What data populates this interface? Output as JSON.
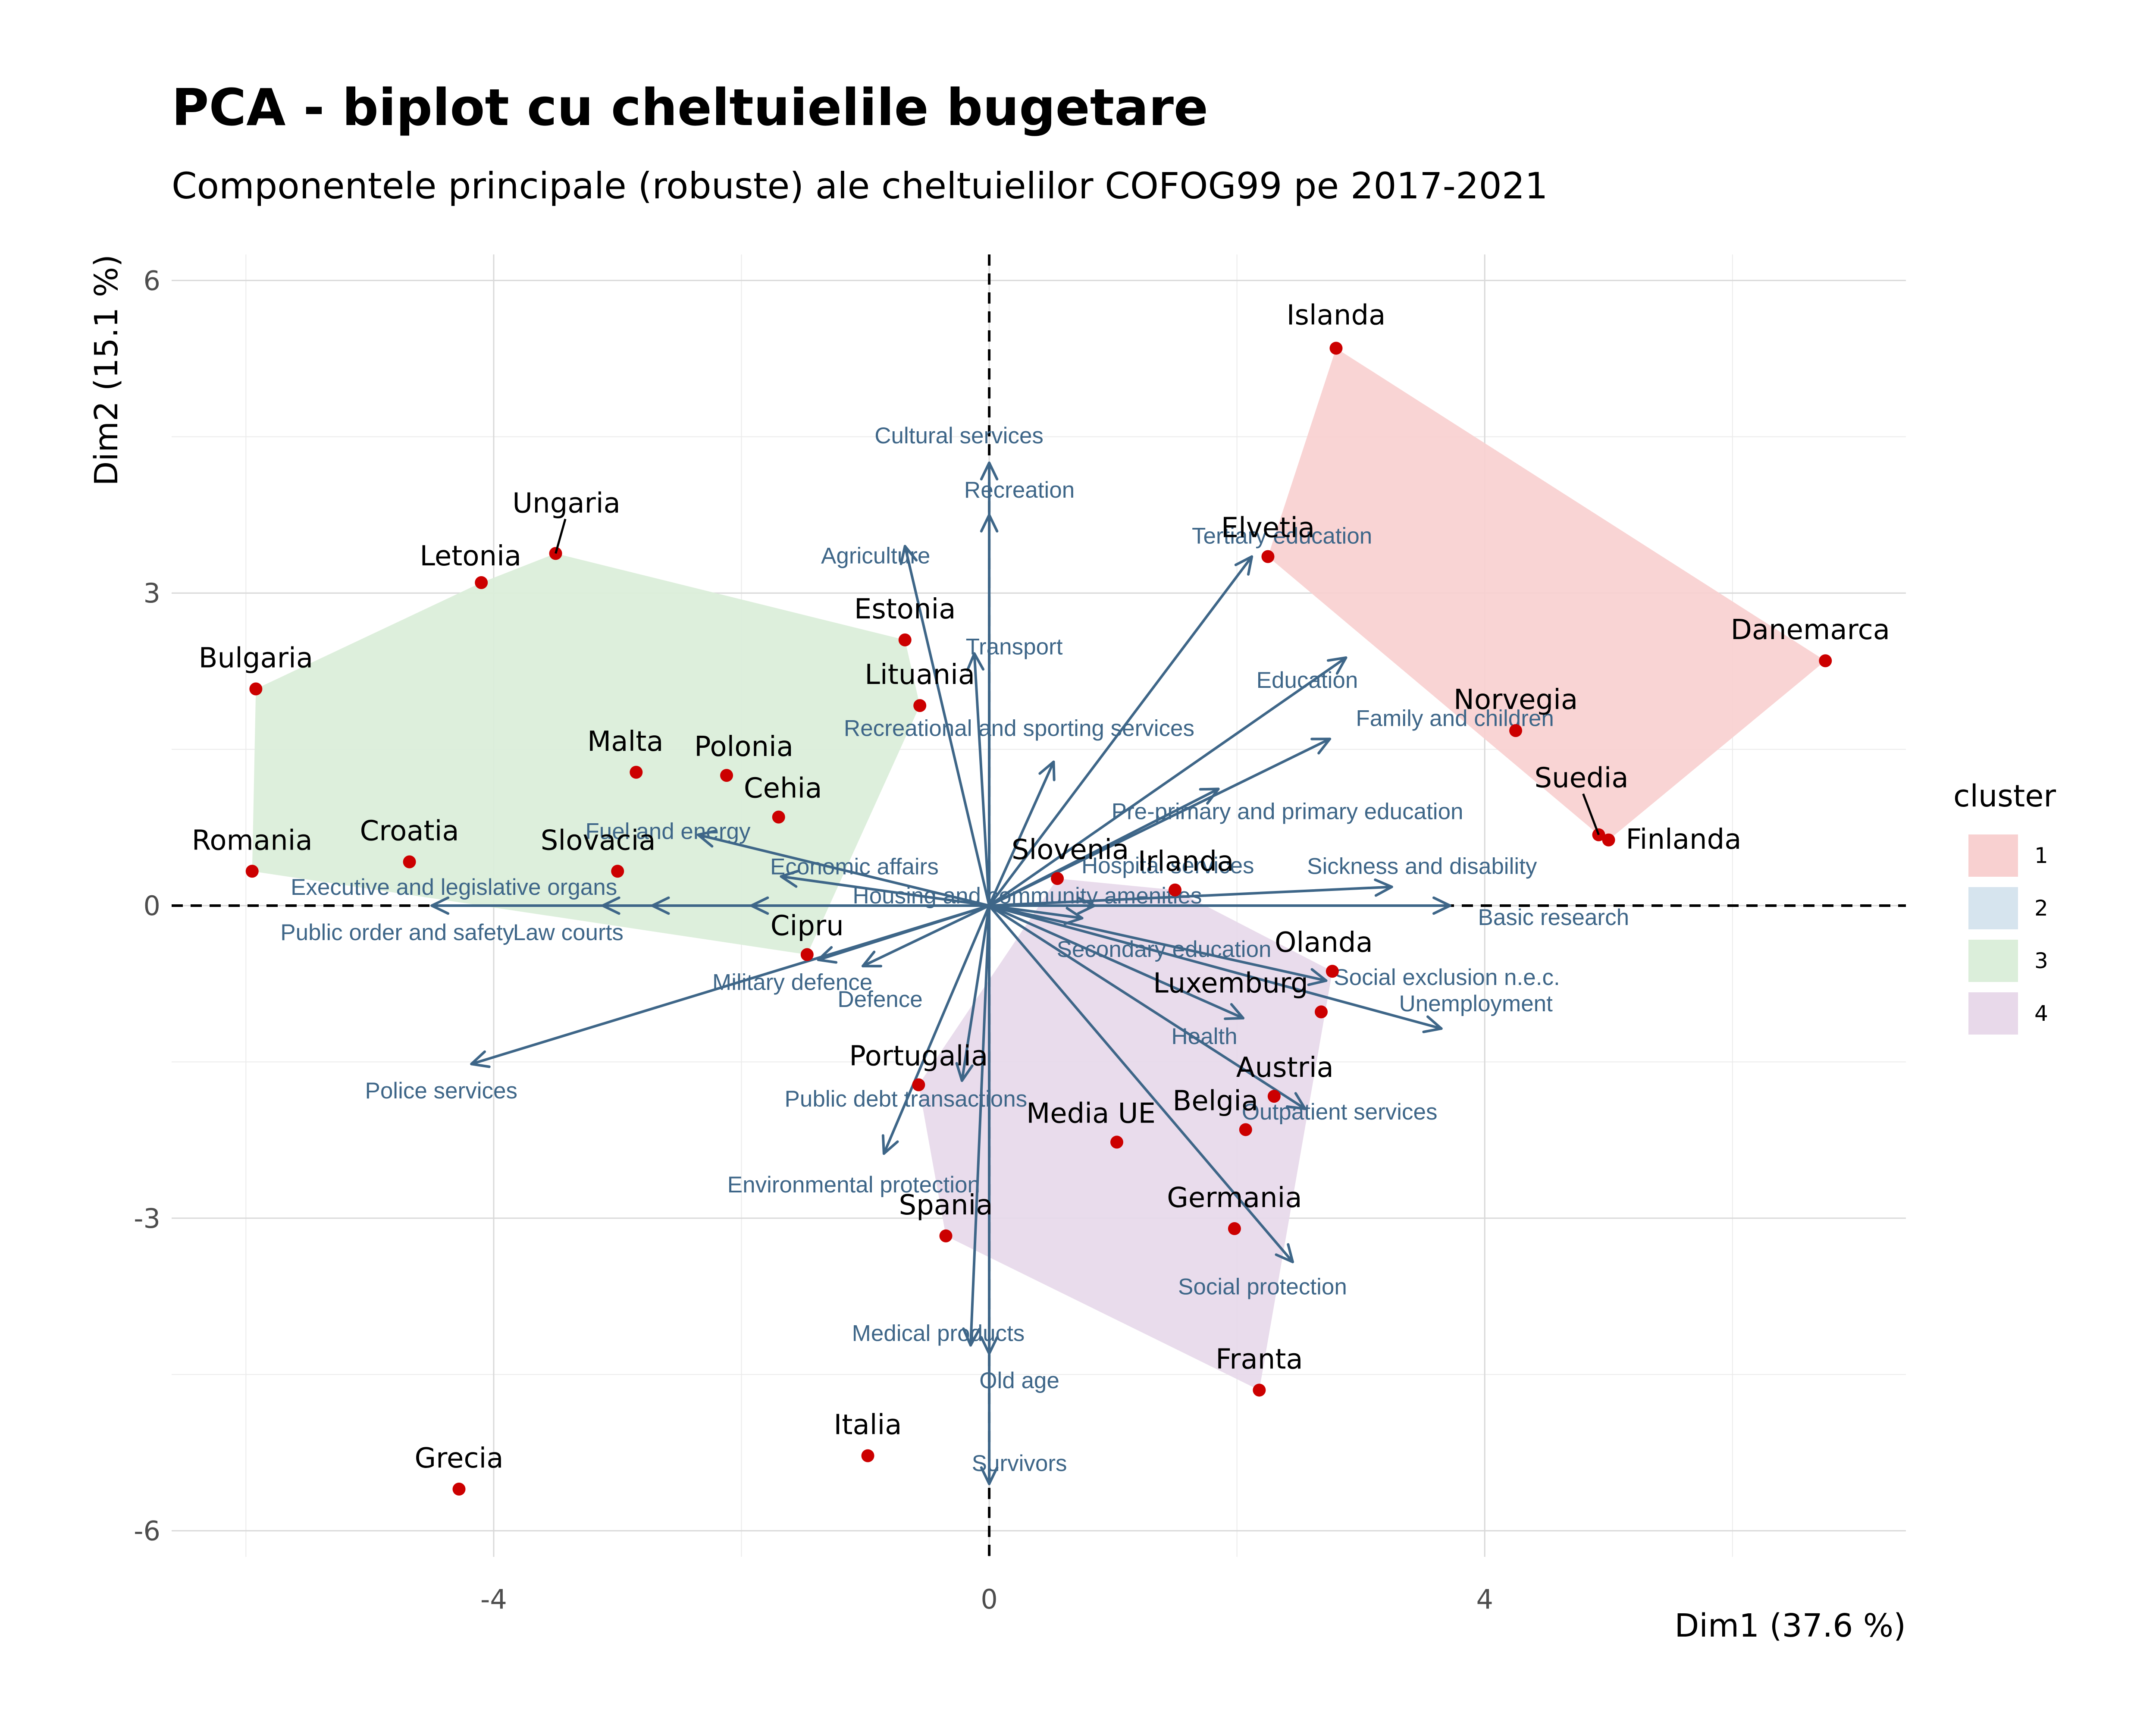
{
  "chart_data": {
    "type": "scatter",
    "title": "PCA - biplot cu cheltuielile bugetare",
    "subtitle": "Componentele principale (robuste) ale cheltuielilor COFOG99 pe 2017-2021",
    "xlabel": "Dim1 (37.6 %)",
    "ylabel": "Dim2 (15.1 %)",
    "xlim": [
      -6.6,
      7.4
    ],
    "ylim": [
      -6.25,
      6.25
    ],
    "x_ticks": [
      -4,
      0,
      4
    ],
    "x_tick_labels": [
      "-4",
      "0",
      "4"
    ],
    "y_ticks": [
      -6,
      -3,
      0,
      3,
      6
    ],
    "y_tick_labels": [
      "-6",
      "-3",
      "0",
      "3",
      "6"
    ],
    "grid": true,
    "reference_lines": {
      "x": 0,
      "y": 0,
      "style": "dashed"
    },
    "legend": {
      "title": "cluster",
      "placement": "right",
      "items": [
        {
          "label": "1",
          "color": "#f8d0d0"
        },
        {
          "label": "2",
          "color": "#d6e4ee"
        },
        {
          "label": "3",
          "color": "#dbeeda"
        },
        {
          "label": "4",
          "color": "#e8d9ea"
        }
      ]
    },
    "point_color": "#cc0000",
    "arrow_color": "#3e6688",
    "countries": [
      {
        "name": "Islanda",
        "x": 2.8,
        "y": 5.35,
        "cluster": 1
      },
      {
        "name": "Elvetia",
        "x": 2.25,
        "y": 3.35,
        "cluster": 1
      },
      {
        "name": "Danemarca",
        "x": 6.75,
        "y": 2.35,
        "cluster": 1
      },
      {
        "name": "Norvegia",
        "x": 4.25,
        "y": 1.68,
        "cluster": 1
      },
      {
        "name": "Suedia",
        "x": 4.92,
        "y": 0.68,
        "cluster": 1
      },
      {
        "name": "Finlanda",
        "x": 5.0,
        "y": 0.63,
        "cluster": 1
      },
      {
        "name": "Ungaria",
        "x": -3.5,
        "y": 3.38,
        "cluster": 3
      },
      {
        "name": "Letonia",
        "x": -4.1,
        "y": 3.1,
        "cluster": 3
      },
      {
        "name": "Bulgaria",
        "x": -5.92,
        "y": 2.08,
        "cluster": 3
      },
      {
        "name": "Romania",
        "x": -5.95,
        "y": 0.33,
        "cluster": 3
      },
      {
        "name": "Croatia",
        "x": -4.68,
        "y": 0.42,
        "cluster": 3
      },
      {
        "name": "Malta",
        "x": -2.85,
        "y": 1.28,
        "cluster": 3
      },
      {
        "name": "Polonia",
        "x": -2.12,
        "y": 1.25,
        "cluster": 3
      },
      {
        "name": "Cehia",
        "x": -1.7,
        "y": 0.85,
        "cluster": 3
      },
      {
        "name": "Slovacia",
        "x": -3.0,
        "y": 0.33,
        "cluster": 3
      },
      {
        "name": "Estonia",
        "x": -0.68,
        "y": 2.55,
        "cluster": 3
      },
      {
        "name": "Lituania",
        "x": -0.56,
        "y": 1.92,
        "cluster": 3
      },
      {
        "name": "Cipru",
        "x": -1.47,
        "y": -0.47,
        "cluster": 3
      },
      {
        "name": "Slovenia",
        "x": 0.55,
        "y": 0.26,
        "cluster": 4
      },
      {
        "name": "Irlanda",
        "x": 1.5,
        "y": 0.15,
        "cluster": 4
      },
      {
        "name": "Olanda",
        "x": 2.77,
        "y": -0.63,
        "cluster": 4
      },
      {
        "name": "Luxemburg",
        "x": 2.68,
        "y": -1.02,
        "cluster": 4
      },
      {
        "name": "Austria",
        "x": 2.3,
        "y": -1.83,
        "cluster": 4
      },
      {
        "name": "Belgia",
        "x": 2.07,
        "y": -2.15,
        "cluster": 4
      },
      {
        "name": "Media UE",
        "x": 1.03,
        "y": -2.27,
        "cluster": 4
      },
      {
        "name": "Germania",
        "x": 1.98,
        "y": -3.1,
        "cluster": 4
      },
      {
        "name": "Franta",
        "x": 2.18,
        "y": -4.65,
        "cluster": 4
      },
      {
        "name": "Portugalia",
        "x": -0.57,
        "y": -1.72,
        "cluster": 4
      },
      {
        "name": "Spania",
        "x": -0.35,
        "y": -3.17,
        "cluster": 4
      },
      {
        "name": "Italia",
        "x": -0.98,
        "y": -5.28,
        "cluster": 4
      },
      {
        "name": "Grecia",
        "x": -4.28,
        "y": -5.6,
        "cluster": 4
      }
    ],
    "variables": [
      {
        "name": "Cultural services",
        "x": 0.0,
        "y": 4.25
      },
      {
        "name": "Recreation",
        "x": 0.0,
        "y": 3.75
      },
      {
        "name": "Agriculture",
        "x": -0.68,
        "y": 3.45
      },
      {
        "name": "Transport",
        "x": -0.12,
        "y": 2.42
      },
      {
        "name": "Recreational and sporting services",
        "x": 0.52,
        "y": 1.38
      },
      {
        "name": "Tertiary education",
        "x": 2.12,
        "y": 3.35
      },
      {
        "name": "Education",
        "x": 2.88,
        "y": 2.38
      },
      {
        "name": "Family and children",
        "x": 2.75,
        "y": 1.6
      },
      {
        "name": "Pre-primary and primary education",
        "x": 1.85,
        "y": 1.12
      },
      {
        "name": "Sickness and disability",
        "x": 3.25,
        "y": 0.18
      },
      {
        "name": "Basic research",
        "x": 3.72,
        "y": 0.0
      },
      {
        "name": "Hospital services",
        "x": 0.85,
        "y": 0.0
      },
      {
        "name": "Secondary education",
        "x": 0.75,
        "y": -0.12
      },
      {
        "name": "Social exclusion n.e.c.",
        "x": 2.72,
        "y": -0.72
      },
      {
        "name": "Unemployment",
        "x": 3.65,
        "y": -1.18
      },
      {
        "name": "Health",
        "x": 2.05,
        "y": -1.08
      },
      {
        "name": "Outpatient services",
        "x": 2.55,
        "y": -1.95
      },
      {
        "name": "Social protection",
        "x": 2.45,
        "y": -3.42
      },
      {
        "name": "Old age",
        "x": 0.0,
        "y": -4.3
      },
      {
        "name": "Survivors",
        "x": 0.0,
        "y": -5.55
      },
      {
        "name": "Medical products",
        "x": -0.15,
        "y": -4.22
      },
      {
        "name": "Public debt transactions",
        "x": -0.22,
        "y": -1.68
      },
      {
        "name": "Environmental protection",
        "x": -0.85,
        "y": -2.38
      },
      {
        "name": "Defence",
        "x": -1.02,
        "y": -0.58
      },
      {
        "name": "Military defence",
        "x": -1.38,
        "y": -0.52
      },
      {
        "name": "Economic affairs",
        "x": -1.68,
        "y": 0.28
      },
      {
        "name": "Housing and community amenities",
        "x": -1.92,
        "y": 0.0
      },
      {
        "name": "Fuel and energy",
        "x": -2.35,
        "y": 0.68
      },
      {
        "name": "Law courts",
        "x": -3.12,
        "y": 0.0
      },
      {
        "name": "Executive and legislative organs",
        "x": -2.72,
        "y": 0.0
      },
      {
        "name": "Public order and safety",
        "x": -4.5,
        "y": 0.0
      },
      {
        "name": "Police services",
        "x": -4.18,
        "y": -1.52
      }
    ]
  }
}
